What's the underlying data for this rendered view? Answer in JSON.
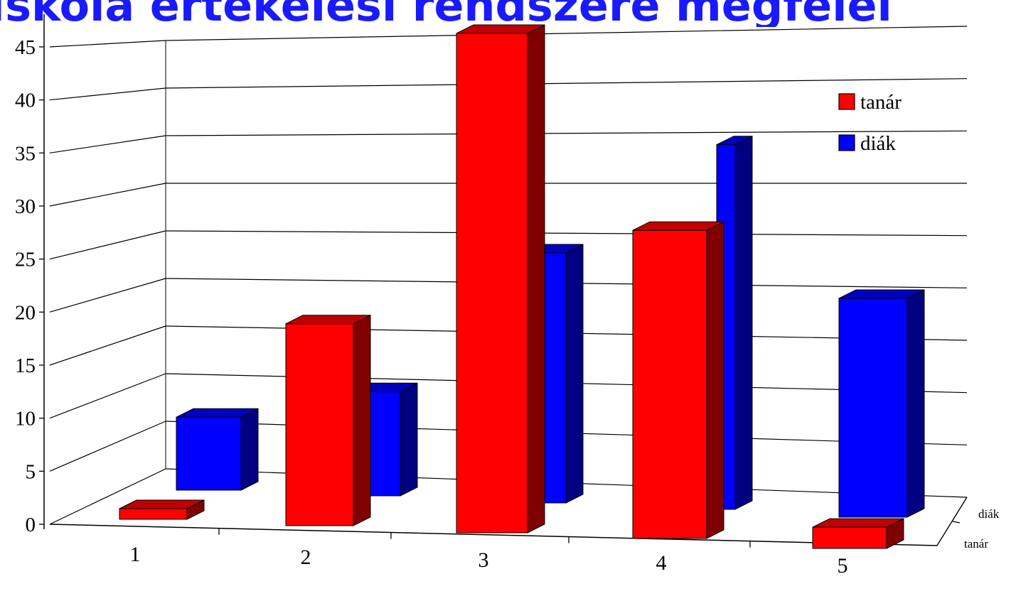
{
  "title": "Iskola értékelési rendszere megfelel",
  "colors": {
    "tanar_front": "#ff0000",
    "tanar_side": "#800000",
    "tanar_top": "#c00000",
    "diak_front": "#0000ff",
    "diak_side": "#000080",
    "diak_top": "#0000c0"
  },
  "chart_data": {
    "type": "bar",
    "style": "3d-clustered-depth",
    "categories": [
      "1",
      "2",
      "3",
      "4",
      "5"
    ],
    "series": [
      {
        "name": "tanár",
        "values": [
          1,
          19,
          47,
          29,
          2
        ]
      },
      {
        "name": "diák",
        "values": [
          7,
          10,
          24,
          35,
          21
        ]
      }
    ],
    "depth_labels": [
      "diák",
      "tanár"
    ],
    "y_ticks": [
      "0",
      "5",
      "10",
      "15",
      "20",
      "25",
      "30",
      "35",
      "40",
      "45"
    ],
    "ylim": [
      0,
      45
    ],
    "grid": true,
    "legend_position": "right",
    "legend": [
      "tanár",
      "diák"
    ]
  }
}
